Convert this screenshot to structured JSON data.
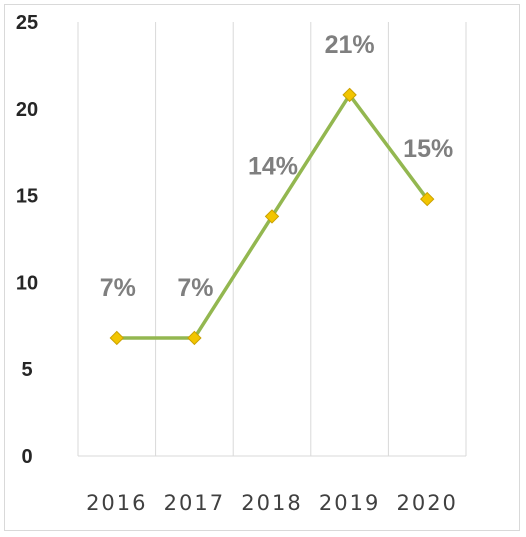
{
  "chart_data": {
    "type": "line",
    "categories": [
      "2016",
      "2017",
      "2018",
      "2019",
      "2020"
    ],
    "values": [
      6.8,
      6.8,
      13.8,
      20.8,
      14.8
    ],
    "data_labels": [
      "7%",
      "7%",
      "14%",
      "21%",
      "15%"
    ],
    "ylim": [
      0,
      25
    ],
    "yticks": [
      "0",
      "5",
      "10",
      "15",
      "20",
      "25"
    ],
    "title": "",
    "xlabel": "",
    "ylabel": "",
    "grid": "vertical",
    "legend": "none",
    "colors": {
      "line": "#93b750",
      "marker_fill": "#f2c500",
      "marker_edge": "#c9a000",
      "label": "#7f7f7f",
      "gridline": "#d9d9d9"
    }
  }
}
